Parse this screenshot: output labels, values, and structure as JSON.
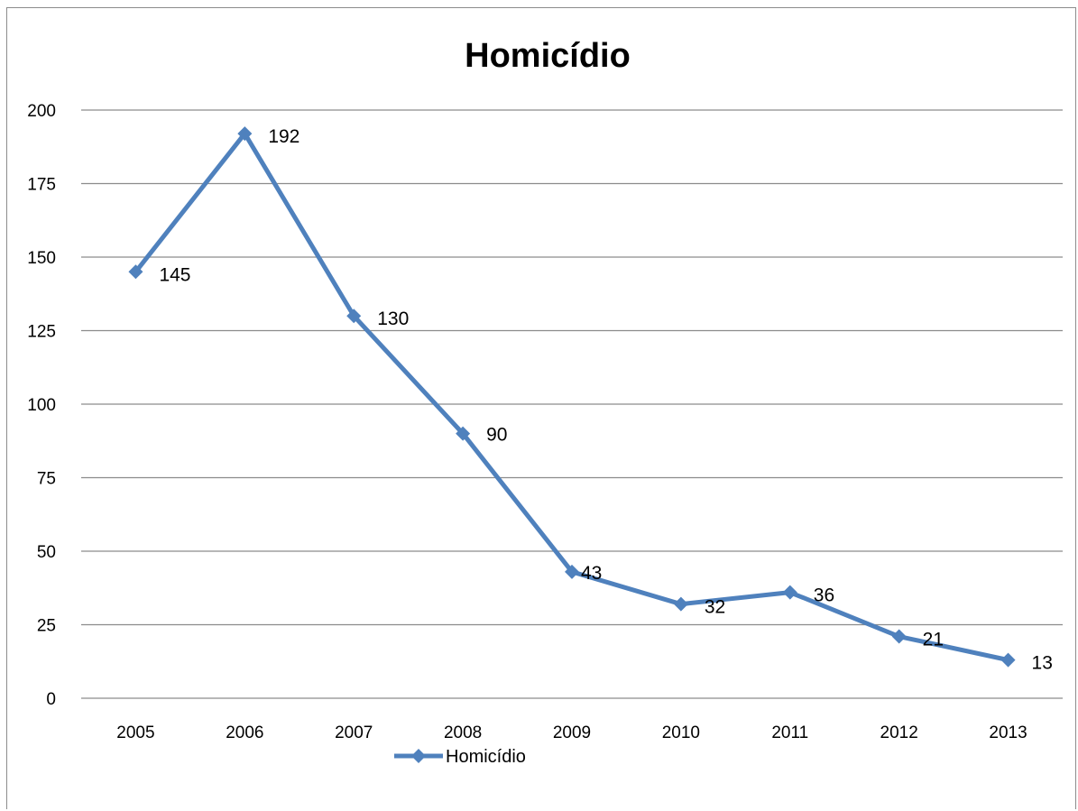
{
  "chart_data": {
    "type": "line",
    "title": "Homicídio",
    "xlabel": "",
    "ylabel": "",
    "categories": [
      "2005",
      "2006",
      "2007",
      "2008",
      "2009",
      "2010",
      "2011",
      "2012",
      "2013"
    ],
    "series": [
      {
        "name": "Homicídio",
        "values": [
          145,
          192,
          130,
          90,
          43,
          32,
          36,
          21,
          13
        ],
        "color": "#4f81bd"
      }
    ],
    "ylim": [
      0,
      200
    ],
    "yticks": [
      0,
      25,
      50,
      75,
      100,
      125,
      150,
      175,
      200
    ],
    "grid": true,
    "data_labels": true,
    "legend": "bottom",
    "colors": {
      "line": "#4f81bd",
      "grid": "#8c8c8c"
    }
  }
}
